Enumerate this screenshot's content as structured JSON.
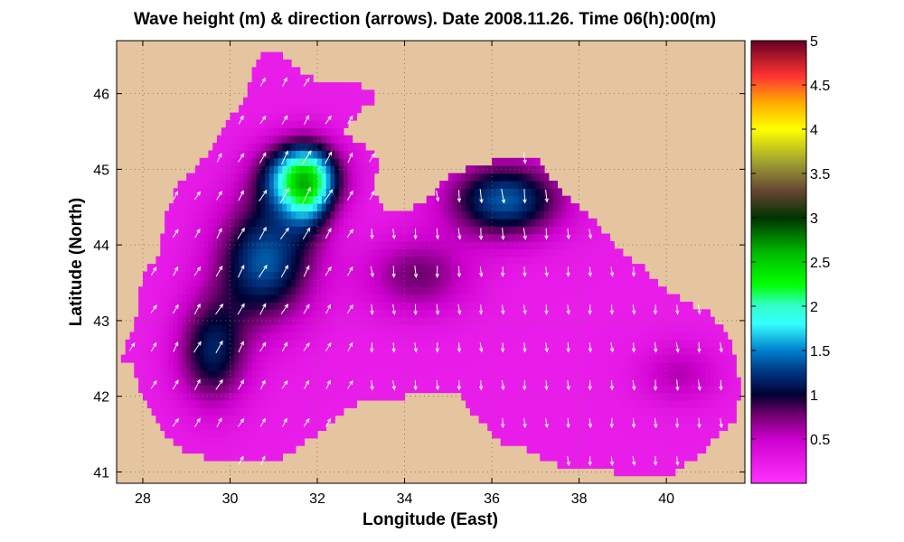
{
  "chart_data": {
    "type": "heatmap",
    "title": "Wave height (m) & direction (arrows). Date 2008.11.26. Time 06(h):00(m)",
    "xlabel": "Longitude (East)",
    "ylabel": "Latitude (North)",
    "xlim": [
      27.4,
      41.8
    ],
    "ylim": [
      40.85,
      46.7
    ],
    "xticks": [
      28,
      30,
      32,
      34,
      36,
      38,
      40
    ],
    "xtick_labels": [
      "28",
      "30",
      "32",
      "34",
      "36",
      "38",
      "40"
    ],
    "yticks": [
      41,
      42,
      43,
      44,
      45,
      46
    ],
    "ytick_labels": [
      "41",
      "42",
      "43",
      "44",
      "45",
      "46"
    ],
    "grid": true,
    "land_color": "#e5c4a0",
    "colorbar": {
      "range": [
        0,
        5
      ],
      "ticks": [
        0.5,
        1,
        1.5,
        2,
        2.5,
        3,
        3.5,
        4,
        4.5,
        5
      ],
      "tick_labels": [
        "0.5",
        "1",
        "1.5",
        "2",
        "2.5",
        "3",
        "3.5",
        "4",
        "4.5",
        "5"
      ],
      "colormap": [
        {
          "v": 0.0,
          "c": "#ff33ff"
        },
        {
          "v": 0.5,
          "c": "#cc00cc"
        },
        {
          "v": 0.8,
          "c": "#660066"
        },
        {
          "v": 1.0,
          "c": "#000033"
        },
        {
          "v": 1.25,
          "c": "#003380"
        },
        {
          "v": 1.5,
          "c": "#0080cc"
        },
        {
          "v": 1.8,
          "c": "#33ffff"
        },
        {
          "v": 2.0,
          "c": "#33ffcc"
        },
        {
          "v": 2.25,
          "c": "#00ff00"
        },
        {
          "v": 2.6,
          "c": "#00bb00"
        },
        {
          "v": 3.0,
          "c": "#003300"
        },
        {
          "v": 3.3,
          "c": "#664433"
        },
        {
          "v": 3.6,
          "c": "#999933"
        },
        {
          "v": 4.0,
          "c": "#ffff00"
        },
        {
          "v": 4.3,
          "c": "#ffaa00"
        },
        {
          "v": 4.6,
          "c": "#ff3333"
        },
        {
          "v": 5.0,
          "c": "#660022"
        }
      ]
    },
    "sea_outline": [
      [
        27.5,
        42.5
      ],
      [
        27.8,
        42.4
      ],
      [
        27.9,
        42.15
      ],
      [
        28.1,
        41.95
      ],
      [
        28.3,
        41.75
      ],
      [
        28.6,
        41.45
      ],
      [
        29.0,
        41.25
      ],
      [
        29.4,
        41.2
      ],
      [
        29.9,
        41.15
      ],
      [
        30.5,
        41.1
      ],
      [
        31.0,
        41.15
      ],
      [
        31.5,
        41.3
      ],
      [
        32.2,
        41.6
      ],
      [
        32.6,
        41.8
      ],
      [
        33.3,
        42.0
      ],
      [
        34.0,
        42.0
      ],
      [
        34.8,
        42.05
      ],
      [
        35.2,
        42.05
      ],
      [
        35.6,
        41.75
      ],
      [
        36.2,
        41.4
      ],
      [
        36.8,
        41.3
      ],
      [
        37.5,
        41.1
      ],
      [
        38.2,
        41.05
      ],
      [
        38.8,
        41.0
      ],
      [
        39.5,
        41.0
      ],
      [
        40.2,
        41.0
      ],
      [
        40.8,
        41.25
      ],
      [
        41.3,
        41.55
      ],
      [
        41.6,
        41.7
      ],
      [
        41.7,
        42.1
      ],
      [
        41.6,
        42.5
      ],
      [
        41.4,
        42.8
      ],
      [
        41.0,
        43.1
      ],
      [
        40.3,
        43.3
      ],
      [
        39.8,
        43.5
      ],
      [
        39.5,
        43.7
      ],
      [
        39.0,
        43.9
      ],
      [
        38.4,
        44.3
      ],
      [
        37.8,
        44.6
      ],
      [
        37.4,
        44.85
      ],
      [
        37.0,
        45.15
      ],
      [
        36.6,
        45.2
      ],
      [
        36.0,
        45.1
      ],
      [
        35.6,
        45.05
      ],
      [
        35.0,
        44.9
      ],
      [
        34.5,
        44.6
      ],
      [
        34.0,
        44.45
      ],
      [
        33.6,
        44.45
      ],
      [
        33.3,
        44.7
      ],
      [
        33.4,
        45.1
      ],
      [
        33.2,
        45.25
      ],
      [
        32.8,
        45.4
      ],
      [
        32.6,
        45.5
      ],
      [
        33.1,
        45.85
      ],
      [
        33.5,
        45.95
      ],
      [
        33.0,
        46.1
      ],
      [
        32.0,
        46.15
      ],
      [
        31.6,
        46.3
      ],
      [
        31.2,
        46.5
      ],
      [
        30.8,
        46.55
      ],
      [
        30.6,
        46.4
      ],
      [
        30.4,
        46.0
      ],
      [
        29.9,
        45.6
      ],
      [
        29.6,
        45.3
      ],
      [
        29.2,
        45.0
      ],
      [
        28.8,
        44.8
      ],
      [
        28.5,
        44.4
      ],
      [
        28.4,
        43.9
      ],
      [
        28.0,
        43.6
      ],
      [
        27.9,
        43.2
      ],
      [
        27.7,
        42.8
      ]
    ],
    "wave_height_sources": [
      {
        "lon": 31.6,
        "lat": 44.9,
        "h": 1.6,
        "sx": 0.9,
        "sy": 0.45
      },
      {
        "lon": 31.8,
        "lat": 44.7,
        "h": 0.85,
        "sx": 0.55,
        "sy": 0.55
      },
      {
        "lon": 30.8,
        "lat": 43.8,
        "h": 1.15,
        "sx": 1.1,
        "sy": 0.8
      },
      {
        "lon": 29.6,
        "lat": 42.6,
        "h": 0.9,
        "sx": 0.8,
        "sy": 0.7
      },
      {
        "lon": 36.3,
        "lat": 44.6,
        "h": 1.15,
        "sx": 1.3,
        "sy": 0.5
      },
      {
        "lon": 34.3,
        "lat": 43.6,
        "h": 0.55,
        "sx": 1.2,
        "sy": 0.5
      },
      {
        "lon": 40.3,
        "lat": 42.3,
        "h": 0.35,
        "sx": 0.9,
        "sy": 0.4
      }
    ],
    "wave_height_base": 0.22,
    "wave_direction": {
      "west_sector_lon_max": 33.0,
      "west_azimuth_deg": 30,
      "east_azimuth_deg": 175
    }
  }
}
